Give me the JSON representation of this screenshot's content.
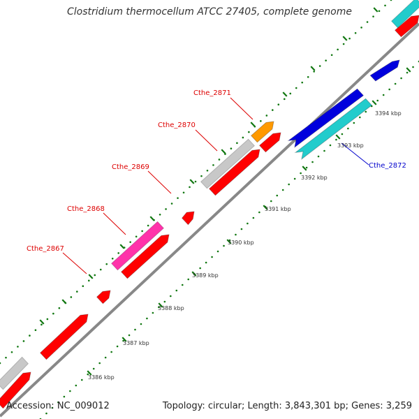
{
  "title": "Clostridium thermocellum ATCC 27405, complete genome",
  "footer": {
    "accession": "Accession: NC_009012",
    "topology": "Topology: circular; Length: 3,843,301 bp; Genes: 3,259"
  },
  "colors": {
    "red": "#ff0000",
    "gray": "#c8c8c8",
    "orange": "#ff9900",
    "magenta": "#ff33aa",
    "blue": "#0000dd",
    "cyan": "#22cccc",
    "backbone": "#888888",
    "ticks": "#117711",
    "label_red": "#dd0000",
    "label_blue": "#0000cc"
  },
  "ticks": [
    {
      "label": "3386 kbp"
    },
    {
      "label": "3387 kbp"
    },
    {
      "label": "3388 kbp"
    },
    {
      "label": "3389 kbp"
    },
    {
      "label": "3390 kbp"
    },
    {
      "label": "3391 kbp"
    },
    {
      "label": "3392 kbp"
    },
    {
      "label": "3393 kbp"
    },
    {
      "label": "3394 kbp"
    }
  ],
  "gene_labels": [
    {
      "label": "Cthe_2867",
      "color": "red"
    },
    {
      "label": "Cthe_2868",
      "color": "red"
    },
    {
      "label": "Cthe_2869",
      "color": "red"
    },
    {
      "label": "Cthe_2870",
      "color": "red"
    },
    {
      "label": "Cthe_2871",
      "color": "red"
    },
    {
      "label": "Cthe_2872",
      "color": "blue"
    }
  ]
}
